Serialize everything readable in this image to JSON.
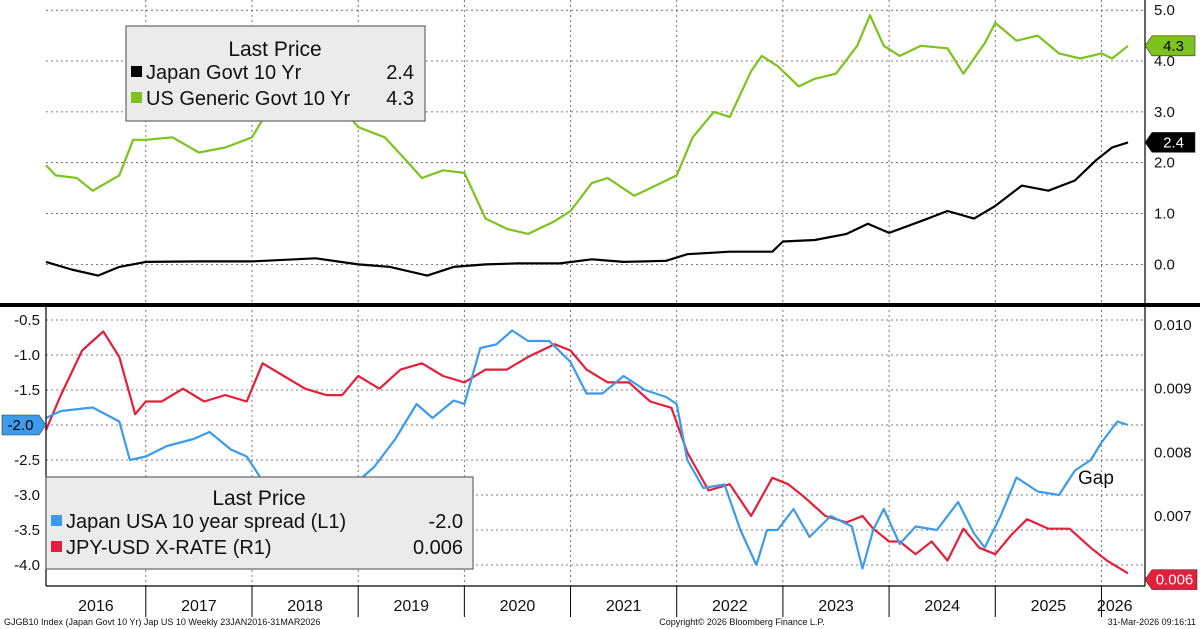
{
  "chart_data": [
    {
      "type": "line",
      "panel": "top",
      "legend": {
        "title": "Last Price",
        "placement": "top-left",
        "entries": [
          {
            "label": "Japan Govt 10 Yr",
            "value": "2.4",
            "color": "#000000"
          },
          {
            "label": "US Generic Govt 10 Yr",
            "value": "4.3",
            "color": "#7dc21e"
          }
        ]
      },
      "ylim": [
        -0.7,
        5.2
      ],
      "yticks": [
        "5.0",
        "4.0",
        "3.0",
        "2.0",
        "1.0",
        "0.0"
      ],
      "last_value_tags": [
        {
          "series": "US Generic Govt 10 Yr",
          "label": "4.3",
          "value": 4.3
        },
        {
          "series": "Japan Govt 10 Yr",
          "label": "2.4",
          "value": 2.4
        }
      ],
      "grid": true,
      "series": [
        {
          "name": "Japan Govt 10 Yr",
          "color": "#000000",
          "points": [
            [
              2016.06,
              0.05
            ],
            [
              2016.3,
              -0.1
            ],
            [
              2016.55,
              -0.22
            ],
            [
              2016.75,
              -0.05
            ],
            [
              2017.0,
              0.05
            ],
            [
              2017.5,
              0.06
            ],
            [
              2018.0,
              0.06
            ],
            [
              2018.6,
              0.12
            ],
            [
              2019.0,
              0.0
            ],
            [
              2019.3,
              -0.05
            ],
            [
              2019.65,
              -0.22
            ],
            [
              2019.9,
              -0.05
            ],
            [
              2020.2,
              0.0
            ],
            [
              2020.5,
              0.02
            ],
            [
              2020.9,
              0.02
            ],
            [
              2021.2,
              0.1
            ],
            [
              2021.5,
              0.05
            ],
            [
              2021.9,
              0.07
            ],
            [
              2022.1,
              0.2
            ],
            [
              2022.5,
              0.25
            ],
            [
              2022.9,
              0.25
            ],
            [
              2023.0,
              0.45
            ],
            [
              2023.3,
              0.48
            ],
            [
              2023.6,
              0.6
            ],
            [
              2023.8,
              0.8
            ],
            [
              2024.0,
              0.62
            ],
            [
              2024.3,
              0.85
            ],
            [
              2024.55,
              1.05
            ],
            [
              2024.8,
              0.9
            ],
            [
              2025.0,
              1.15
            ],
            [
              2025.25,
              1.55
            ],
            [
              2025.5,
              1.45
            ],
            [
              2025.75,
              1.65
            ],
            [
              2025.95,
              2.05
            ],
            [
              2026.1,
              2.3
            ],
            [
              2026.25,
              2.4
            ]
          ]
        },
        {
          "name": "US Generic Govt 10 Yr",
          "color": "#7dc21e",
          "points": [
            [
              2016.06,
              1.95
            ],
            [
              2016.15,
              1.75
            ],
            [
              2016.35,
              1.7
            ],
            [
              2016.5,
              1.45
            ],
            [
              2016.75,
              1.75
            ],
            [
              2016.88,
              2.45
            ],
            [
              2017.0,
              2.45
            ],
            [
              2017.25,
              2.5
            ],
            [
              2017.5,
              2.2
            ],
            [
              2017.75,
              2.3
            ],
            [
              2018.0,
              2.5
            ],
            [
              2018.1,
              2.85
            ],
            [
              2018.4,
              2.95
            ],
            [
              2018.65,
              3.05
            ],
            [
              2018.8,
              3.2
            ],
            [
              2019.0,
              2.7
            ],
            [
              2019.25,
              2.5
            ],
            [
              2019.45,
              2.05
            ],
            [
              2019.6,
              1.7
            ],
            [
              2019.8,
              1.85
            ],
            [
              2020.0,
              1.8
            ],
            [
              2020.2,
              0.9
            ],
            [
              2020.4,
              0.7
            ],
            [
              2020.6,
              0.6
            ],
            [
              2020.85,
              0.85
            ],
            [
              2021.0,
              1.05
            ],
            [
              2021.2,
              1.6
            ],
            [
              2021.35,
              1.7
            ],
            [
              2021.6,
              1.35
            ],
            [
              2021.8,
              1.55
            ],
            [
              2022.0,
              1.75
            ],
            [
              2022.15,
              2.5
            ],
            [
              2022.35,
              3.0
            ],
            [
              2022.5,
              2.9
            ],
            [
              2022.7,
              3.8
            ],
            [
              2022.8,
              4.1
            ],
            [
              2022.95,
              3.9
            ],
            [
              2023.15,
              3.5
            ],
            [
              2023.3,
              3.65
            ],
            [
              2023.5,
              3.75
            ],
            [
              2023.7,
              4.3
            ],
            [
              2023.82,
              4.9
            ],
            [
              2023.95,
              4.3
            ],
            [
              2024.1,
              4.1
            ],
            [
              2024.3,
              4.3
            ],
            [
              2024.55,
              4.25
            ],
            [
              2024.7,
              3.75
            ],
            [
              2024.9,
              4.35
            ],
            [
              2025.0,
              4.75
            ],
            [
              2025.2,
              4.4
            ],
            [
              2025.4,
              4.5
            ],
            [
              2025.6,
              4.15
            ],
            [
              2025.8,
              4.05
            ],
            [
              2026.0,
              4.15
            ],
            [
              2026.1,
              4.05
            ],
            [
              2026.25,
              4.3
            ]
          ]
        }
      ]
    },
    {
      "type": "line",
      "panel": "bottom",
      "legend": {
        "title": "Last Price",
        "placement": "bottom-left",
        "entries": [
          {
            "label": "Japan USA 10 year spread  (L1)",
            "value": "-2.0",
            "color": "#3d9be9"
          },
          {
            "label": "JPY-USD X-RATE  (R1)",
            "value": "0.006",
            "color": "#e3203c"
          }
        ]
      },
      "left_axis": {
        "ylim": [
          -4.3,
          -0.3
        ],
        "ticks": [
          "-0.5",
          "-1.0",
          "-1.5",
          "-2.0",
          "-2.5",
          "-3.0",
          "-3.5",
          "-4.0"
        ]
      },
      "right_axis": {
        "ylim": [
          0.0059,
          0.0103
        ],
        "ticks": [
          "0.010",
          "0.009",
          "0.008",
          "0.007",
          "0.006"
        ]
      },
      "last_value_tags": [
        {
          "series": "Japan USA 10 year spread  (L1)",
          "label": "-2.0",
          "value": -2.0
        },
        {
          "series": "JPY-USD X-RATE  (R1)",
          "label": "0.006",
          "value": 0.006
        }
      ],
      "annotations": [
        "Gap"
      ],
      "grid": true,
      "series": [
        {
          "name": "Japan USA 10 year spread  (L1)",
          "axis": "left",
          "color": "#3d9be9",
          "points": [
            [
              2016.06,
              -1.9
            ],
            [
              2016.2,
              -1.8
            ],
            [
              2016.5,
              -1.75
            ],
            [
              2016.75,
              -1.95
            ],
            [
              2016.85,
              -2.5
            ],
            [
              2017.0,
              -2.45
            ],
            [
              2017.2,
              -2.3
            ],
            [
              2017.45,
              -2.2
            ],
            [
              2017.6,
              -2.1
            ],
            [
              2017.8,
              -2.35
            ],
            [
              2017.95,
              -2.45
            ],
            [
              2018.1,
              -2.8
            ],
            [
              2018.3,
              -2.95
            ],
            [
              2018.5,
              -3.1
            ],
            [
              2018.7,
              -3.1
            ],
            [
              2018.85,
              -2.9
            ],
            [
              2019.0,
              -2.8
            ],
            [
              2019.15,
              -2.6
            ],
            [
              2019.35,
              -2.2
            ],
            [
              2019.55,
              -1.7
            ],
            [
              2019.7,
              -1.9
            ],
            [
              2019.9,
              -1.65
            ],
            [
              2020.0,
              -1.7
            ],
            [
              2020.15,
              -0.9
            ],
            [
              2020.3,
              -0.85
            ],
            [
              2020.45,
              -0.65
            ],
            [
              2020.6,
              -0.8
            ],
            [
              2020.8,
              -0.8
            ],
            [
              2021.0,
              -1.1
            ],
            [
              2021.15,
              -1.55
            ],
            [
              2021.3,
              -1.55
            ],
            [
              2021.5,
              -1.3
            ],
            [
              2021.7,
              -1.5
            ],
            [
              2021.9,
              -1.6
            ],
            [
              2022.0,
              -1.7
            ],
            [
              2022.1,
              -2.5
            ],
            [
              2022.25,
              -2.9
            ],
            [
              2022.45,
              -2.85
            ],
            [
              2022.6,
              -3.5
            ],
            [
              2022.75,
              -4.0
            ],
            [
              2022.85,
              -3.5
            ],
            [
              2022.95,
              -3.5
            ],
            [
              2023.1,
              -3.2
            ],
            [
              2023.25,
              -3.6
            ],
            [
              2023.45,
              -3.3
            ],
            [
              2023.65,
              -3.45
            ],
            [
              2023.75,
              -4.05
            ],
            [
              2023.85,
              -3.5
            ],
            [
              2023.95,
              -3.2
            ],
            [
              2024.1,
              -3.7
            ],
            [
              2024.25,
              -3.45
            ],
            [
              2024.45,
              -3.5
            ],
            [
              2024.65,
              -3.1
            ],
            [
              2024.8,
              -3.55
            ],
            [
              2024.9,
              -3.75
            ],
            [
              2025.05,
              -3.3
            ],
            [
              2025.2,
              -2.75
            ],
            [
              2025.4,
              -2.95
            ],
            [
              2025.6,
              -3.0
            ],
            [
              2025.75,
              -2.65
            ],
            [
              2025.9,
              -2.5
            ],
            [
              2026.0,
              -2.25
            ],
            [
              2026.15,
              -1.95
            ],
            [
              2026.25,
              -2.0
            ]
          ]
        },
        {
          "name": "JPY-USD X-RATE  (R1)",
          "axis": "right",
          "color": "#e3203c",
          "points": [
            [
              2016.06,
              0.00835
            ],
            [
              2016.2,
              0.0089
            ],
            [
              2016.4,
              0.0096
            ],
            [
              2016.6,
              0.0099
            ],
            [
              2016.75,
              0.0095
            ],
            [
              2016.9,
              0.0086
            ],
            [
              2017.0,
              0.0088
            ],
            [
              2017.15,
              0.0088
            ],
            [
              2017.35,
              0.009
            ],
            [
              2017.55,
              0.0088
            ],
            [
              2017.75,
              0.0089
            ],
            [
              2017.95,
              0.0088
            ],
            [
              2018.1,
              0.0094
            ],
            [
              2018.3,
              0.0092
            ],
            [
              2018.5,
              0.009
            ],
            [
              2018.7,
              0.0089
            ],
            [
              2018.85,
              0.0089
            ],
            [
              2019.0,
              0.0092
            ],
            [
              2019.2,
              0.009
            ],
            [
              2019.4,
              0.0093
            ],
            [
              2019.6,
              0.0094
            ],
            [
              2019.8,
              0.0092
            ],
            [
              2020.0,
              0.0091
            ],
            [
              2020.2,
              0.0093
            ],
            [
              2020.4,
              0.0093
            ],
            [
              2020.6,
              0.0095
            ],
            [
              2020.85,
              0.0097
            ],
            [
              2021.0,
              0.0096
            ],
            [
              2021.15,
              0.0093
            ],
            [
              2021.35,
              0.0091
            ],
            [
              2021.55,
              0.0091
            ],
            [
              2021.75,
              0.0088
            ],
            [
              2021.95,
              0.0087
            ],
            [
              2022.1,
              0.008
            ],
            [
              2022.3,
              0.0074
            ],
            [
              2022.5,
              0.0075
            ],
            [
              2022.7,
              0.007
            ],
            [
              2022.8,
              0.0073
            ],
            [
              2022.9,
              0.0076
            ],
            [
              2023.05,
              0.0075
            ],
            [
              2023.2,
              0.0073
            ],
            [
              2023.4,
              0.007
            ],
            [
              2023.6,
              0.0069
            ],
            [
              2023.75,
              0.007
            ],
            [
              2023.85,
              0.0068
            ],
            [
              2024.0,
              0.0066
            ],
            [
              2024.1,
              0.0066
            ],
            [
              2024.25,
              0.0064
            ],
            [
              2024.4,
              0.0066
            ],
            [
              2024.55,
              0.0063
            ],
            [
              2024.7,
              0.0068
            ],
            [
              2024.85,
              0.0065
            ],
            [
              2025.0,
              0.0064
            ],
            [
              2025.15,
              0.0067
            ],
            [
              2025.3,
              0.00695
            ],
            [
              2025.5,
              0.0068
            ],
            [
              2025.7,
              0.0068
            ],
            [
              2025.9,
              0.0065
            ],
            [
              2026.05,
              0.0063
            ],
            [
              2026.15,
              0.0062
            ],
            [
              2026.25,
              0.0061
            ]
          ]
        }
      ]
    }
  ],
  "x_axis": {
    "years": [
      "2016",
      "2017",
      "2018",
      "2019",
      "2020",
      "2021",
      "2022",
      "2023",
      "2024",
      "2025",
      "2026"
    ],
    "start": 2016.06,
    "end": 2026.25
  },
  "footer": {
    "left": "GJGB10 Index (Japan Govt 10 Yr) Jap US 10 Weekly 23JAN2016-31MAR2026",
    "center": "Copyright© 2026 Bloomberg Finance L.P.",
    "right": "31-Mar-2026 09:16:11"
  }
}
